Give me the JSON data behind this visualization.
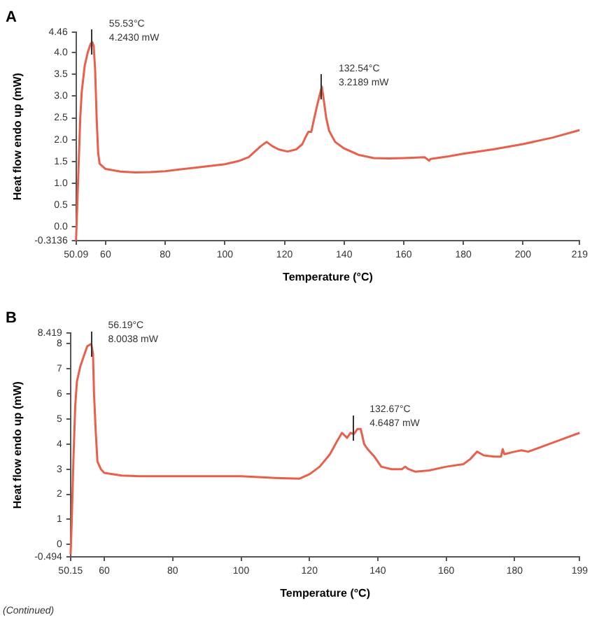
{
  "chart_data": [
    {
      "type": "line",
      "title": "A",
      "xlabel": "Temperature (°C)",
      "ylabel": "Heat flow endo up (mW)",
      "x": [
        50.09,
        50.5,
        51,
        51.5,
        52,
        53,
        54,
        55,
        55.53,
        56,
        56.5,
        57,
        57.5,
        58,
        60,
        65,
        70,
        75,
        80,
        90,
        100,
        105,
        108,
        112,
        114,
        116,
        118,
        121,
        124,
        126,
        127,
        128,
        129,
        130,
        131,
        132.54,
        133,
        134,
        135,
        137,
        140,
        145,
        150,
        155,
        160,
        167,
        168.5,
        169,
        175,
        180,
        190,
        200,
        210,
        219
      ],
      "series": [
        {
          "color": "#e8604c",
          "values": [
            -0.31,
            0.5,
            1.5,
            2.5,
            3.1,
            3.7,
            4.0,
            4.2,
            4.24,
            4.15,
            3.6,
            2.5,
            1.7,
            1.45,
            1.33,
            1.27,
            1.25,
            1.26,
            1.28,
            1.36,
            1.44,
            1.52,
            1.6,
            1.85,
            1.95,
            1.85,
            1.78,
            1.73,
            1.78,
            1.9,
            2.05,
            2.18,
            2.18,
            2.5,
            2.8,
            3.22,
            3.0,
            2.5,
            2.2,
            1.95,
            1.8,
            1.65,
            1.58,
            1.57,
            1.58,
            1.6,
            1.52,
            1.56,
            1.62,
            1.68,
            1.78,
            1.9,
            2.05,
            2.22
          ]
        }
      ],
      "xlim": [
        50.09,
        219
      ],
      "xticks": [
        50.09,
        60,
        80,
        100,
        120,
        140,
        160,
        180,
        200,
        219
      ],
      "ylim": [
        -0.3136,
        4.46
      ],
      "yticks": [
        -0.3136,
        {
          "value": 0,
          "label": "0.0"
        },
        0.5,
        {
          "value": 1,
          "label": "1.0"
        },
        1.5,
        {
          "value": 2,
          "label": "2.0"
        },
        2.5,
        {
          "value": 3,
          "label": "3.0"
        },
        3.5,
        {
          "value": 4,
          "label": "4.0"
        },
        4.46
      ],
      "grid": false,
      "legend": false,
      "annotations": [
        {
          "text": "55.53°C\n4.2430 mW",
          "x": 55.53,
          "y": 4.243
        },
        {
          "text": "132.54°C\n3.2189 mW",
          "x": 132.54,
          "y": 3.219
        }
      ]
    },
    {
      "type": "line",
      "title": "B",
      "xlabel": "Temperature (°C)",
      "ylabel": "Heat flow endo up (mW)",
      "x": [
        50.15,
        50.5,
        51,
        51.5,
        52,
        53,
        54,
        55,
        56.19,
        56.7,
        57,
        57.5,
        58,
        59,
        60,
        65,
        70,
        80,
        90,
        100,
        110,
        117,
        120,
        123,
        126,
        128,
        129.5,
        131,
        132,
        133,
        134,
        135,
        136,
        137,
        139,
        141,
        144,
        147,
        148,
        149,
        151,
        155,
        160,
        165,
        167,
        169,
        171,
        174,
        176,
        176.5,
        177,
        180,
        182,
        184,
        190,
        195,
        199
      ],
      "series": [
        {
          "color": "#e8604c",
          "values": [
            -0.4,
            1,
            3.5,
            5.5,
            6.5,
            7.1,
            7.5,
            7.9,
            8.0,
            7.6,
            6,
            4.5,
            3.3,
            3.0,
            2.85,
            2.75,
            2.72,
            2.72,
            2.72,
            2.72,
            2.65,
            2.62,
            2.8,
            3.1,
            3.6,
            4.1,
            4.45,
            4.25,
            4.45,
            4.4,
            4.6,
            4.6,
            4.0,
            3.8,
            3.5,
            3.1,
            3.0,
            3.0,
            3.1,
            3.0,
            2.9,
            2.95,
            3.1,
            3.2,
            3.4,
            3.7,
            3.55,
            3.5,
            3.5,
            3.8,
            3.6,
            3.7,
            3.75,
            3.7,
            4.0,
            4.25,
            4.45
          ]
        }
      ],
      "xlim": [
        50.15,
        199
      ],
      "xticks": [
        50.15,
        60,
        80,
        100,
        120,
        140,
        160,
        180,
        199
      ],
      "ylim": [
        -0.494,
        8.419
      ],
      "yticks": [
        -0.494,
        0,
        1,
        2,
        3,
        4,
        5,
        6,
        7,
        8,
        8.419
      ],
      "grid": false,
      "legend": false,
      "annotations": [
        {
          "text": "56.19°C\n8.0038 mW",
          "x": 56.19,
          "y": 8.0038
        },
        {
          "text": "132.67°C\n4.6487 mW",
          "x": 132.67,
          "y": 4.6487
        },
        "(Continued)"
      ]
    }
  ]
}
